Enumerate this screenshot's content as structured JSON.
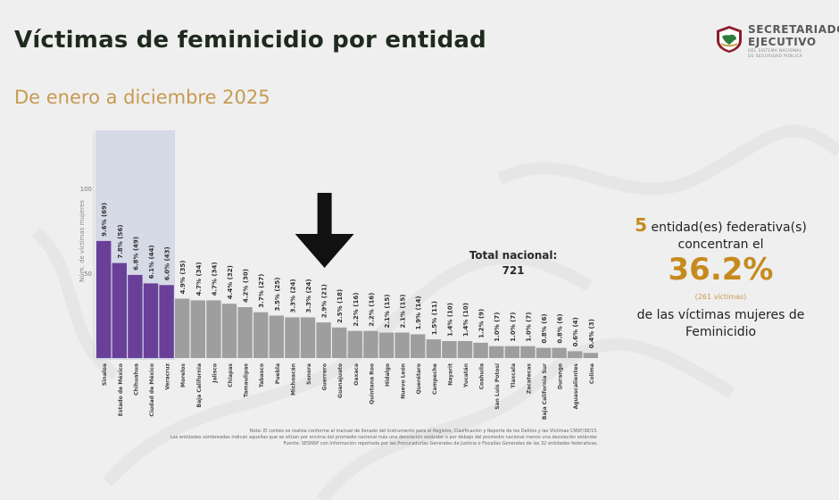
{
  "header": {
    "title": "Víctimas de feminicidio por entidad",
    "subtitle": "De enero a diciembre 2025"
  },
  "logo": {
    "line1": "SECRETARIADO",
    "line2": "EJECUTIVO",
    "line3": "DEL SISTEMA NACIONAL",
    "line4": "DE SEGURIDAD PÚBLICA"
  },
  "chart_data": {
    "type": "bar",
    "ylabel": "Núm. de víctimas mujeres",
    "ylim": [
      0,
      100
    ],
    "yticks": [
      50,
      100
    ],
    "categories": [
      "Sinaloa",
      "Estado de México",
      "Chihuahua",
      "Ciudad de México",
      "Veracruz",
      "Morelos",
      "Baja California",
      "Jalisco",
      "Chiapas",
      "Tamaulipas",
      "Tabasco",
      "Puebla",
      "Michoacán",
      "Sonora",
      "Guerrero",
      "Guanajuato",
      "Oaxaca",
      "Quintana Roo",
      "Hidalgo",
      "Nuevo León",
      "Querétaro",
      "Campeche",
      "Nayarit",
      "Yucatán",
      "Coahuila",
      "San Luis Potosí",
      "Tlaxcala",
      "Zacatecas",
      "Baja California Sur",
      "Durango",
      "Aguascalientes",
      "Colima"
    ],
    "values": [
      69,
      56,
      49,
      44,
      43,
      35,
      34,
      34,
      32,
      30,
      27,
      25,
      24,
      24,
      21,
      18,
      16,
      16,
      15,
      15,
      14,
      11,
      10,
      10,
      9,
      7,
      7,
      7,
      6,
      6,
      4,
      3
    ],
    "value_labels": [
      "9.6% (69)",
      "7.8% (56)",
      "6.8% (49)",
      "6.1% (44)",
      "6.0% (43)",
      "4.9% (35)",
      "4.7% (34)",
      "4.7% (34)",
      "4.4% (32)",
      "4.2% (30)",
      "3.7% (27)",
      "3.5% (25)",
      "3.3% (24)",
      "3.3% (24)",
      "2.9% (21)",
      "2.5% (18)",
      "2.2% (16)",
      "2.2% (16)",
      "2.1% (15)",
      "2.1% (15)",
      "1.9% (14)",
      "1.5% (11)",
      "1.4% (10)",
      "1.4% (10)",
      "1.2% (9)",
      "1.0% (7)",
      "1.0% (7)",
      "1.0% (7)",
      "0.8% (6)",
      "0.8% (6)",
      "0.6% (4)",
      "0.4% (3)"
    ],
    "highlighted_count": 5,
    "highlight_color": "#6a3f98",
    "bar_color": "#9e9e9e",
    "highlight_band_color": "#d6d9e6",
    "arrow_target": "Guerrero",
    "total_label": "Total nacional:",
    "total_value": "721"
  },
  "summary": {
    "count": "5",
    "line1": "entidad(es)   federativa(s)",
    "line2": "concentran el",
    "percent": "36.2%",
    "victims": "(261  víctimas)",
    "line3": "de las   víctimas   mujeres de",
    "line4": "Feminicidio"
  },
  "notes": [
    "Nota: El conteo se realiza conforme al manual de llenado del Instrumento para el Registro, Clasificación y Reporte de los Delitos y las Víctimas CNSP/38/15.",
    "Las entidades sombreadas indican aquellas que se sitúan por encima del promedio nacional más una desviación estándar o por debajo del promedio nacional menos una desviación estándar.",
    "Fuente: SESNSP con información reportada por las Procuradurías Generales de Justicia o Fiscalías Generales de las 32 entidades federativas."
  ]
}
